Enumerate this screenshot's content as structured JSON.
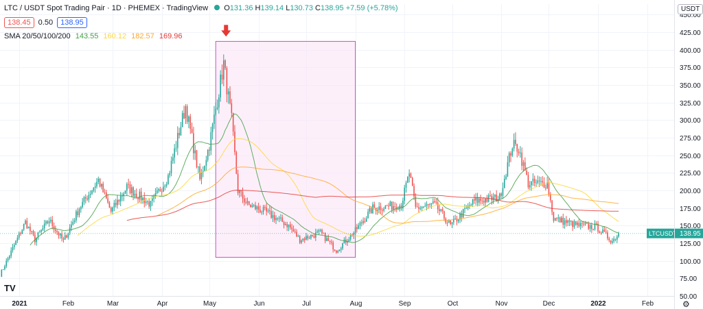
{
  "header": {
    "title": "LTC / USDT Spot Trading Pair · 1D · PHEMEX · TradingView",
    "ohlc": {
      "o_label": "O",
      "o": "131.36",
      "h_label": "H",
      "h": "139.14",
      "l_label": "L",
      "l": "130.73",
      "c_label": "C",
      "c": "138.95",
      "change": "+7.59 (+5.78%)"
    },
    "sell_price": "138.45",
    "spread": "0.50",
    "buy_price": "138.95",
    "sma_label": "SMA 20/50/100/200",
    "sma_values": [
      "143.55",
      "160.12",
      "182.57",
      "169.96"
    ]
  },
  "axis_currency": "USDT",
  "symbol_tag": "LTCUSDT",
  "last_price": "138.95",
  "colors": {
    "up": "#26a69a",
    "down": "#ef5350",
    "sma20": "#43a047",
    "sma50": "#fdd835",
    "sma100": "#ffa726",
    "sma200": "#e53935",
    "highlight_fill": "#fce4f6",
    "highlight_stroke": "#c154c1",
    "arrow": "#e53935"
  },
  "icons": {
    "gear": "gear-icon",
    "logo": "tradingview-logo-icon",
    "arrow": "arrow-down-icon"
  },
  "chart_data": {
    "type": "candlestick",
    "x_range": [
      "2020-12-20",
      "2022-02-18"
    ],
    "y_range": [
      50,
      465
    ],
    "y_ticks": [
      50,
      75,
      100,
      125,
      150,
      175,
      200,
      225,
      250,
      275,
      300,
      325,
      350,
      375,
      400,
      425,
      450
    ],
    "x_ticks": [
      {
        "date": "2021-01-01",
        "label": "2021",
        "bold": true
      },
      {
        "date": "2021-02-01",
        "label": "Feb"
      },
      {
        "date": "2021-03-01",
        "label": "Mar"
      },
      {
        "date": "2021-04-01",
        "label": "Apr"
      },
      {
        "date": "2021-05-01",
        "label": "May"
      },
      {
        "date": "2021-06-01",
        "label": "Jun"
      },
      {
        "date": "2021-07-01",
        "label": "Jul"
      },
      {
        "date": "2021-08-01",
        "label": "Aug"
      },
      {
        "date": "2021-09-01",
        "label": "Sep"
      },
      {
        "date": "2021-10-01",
        "label": "Oct"
      },
      {
        "date": "2021-11-01",
        "label": "Nov"
      },
      {
        "date": "2021-12-01",
        "label": "Dec"
      },
      {
        "date": "2022-01-01",
        "label": "2022",
        "bold": true
      },
      {
        "date": "2022-02-01",
        "label": "Feb"
      }
    ],
    "price_anchors": [
      [
        "2020-12-20",
        80
      ],
      [
        "2021-01-05",
        155
      ],
      [
        "2021-01-11",
        130
      ],
      [
        "2021-01-20",
        158
      ],
      [
        "2021-01-29",
        128
      ],
      [
        "2021-02-08",
        175
      ],
      [
        "2021-02-20",
        215
      ],
      [
        "2021-02-28",
        170
      ],
      [
        "2021-03-10",
        205
      ],
      [
        "2021-03-25",
        180
      ],
      [
        "2021-04-05",
        220
      ],
      [
        "2021-04-16",
        320
      ],
      [
        "2021-04-25",
        215
      ],
      [
        "2021-05-01",
        265
      ],
      [
        "2021-05-10",
        380
      ],
      [
        "2021-05-15",
        300
      ],
      [
        "2021-05-19",
        200
      ],
      [
        "2021-05-25",
        180
      ],
      [
        "2021-06-05",
        170
      ],
      [
        "2021-06-20",
        150
      ],
      [
        "2021-06-27",
        130
      ],
      [
        "2021-07-10",
        140
      ],
      [
        "2021-07-20",
        115
      ],
      [
        "2021-07-31",
        140
      ],
      [
        "2021-08-12",
        175
      ],
      [
        "2021-08-30",
        180
      ],
      [
        "2021-09-04",
        225
      ],
      [
        "2021-09-08",
        175
      ],
      [
        "2021-09-20",
        180
      ],
      [
        "2021-09-30",
        150
      ],
      [
        "2021-10-15",
        185
      ],
      [
        "2021-10-31",
        190
      ],
      [
        "2021-11-08",
        265
      ],
      [
        "2021-11-12",
        260
      ],
      [
        "2021-11-18",
        210
      ],
      [
        "2021-11-30",
        210
      ],
      [
        "2021-12-04",
        160
      ],
      [
        "2021-12-20",
        150
      ],
      [
        "2021-12-31",
        148
      ],
      [
        "2022-01-10",
        128
      ],
      [
        "2022-01-14",
        138.95
      ]
    ],
    "sma_last": {
      "sma20": 143.55,
      "sma50": 160.12,
      "sma100": 182.57,
      "sma200": 169.96
    },
    "highlight": {
      "x0": "2021-05-05",
      "x1": "2021-08-01",
      "y0": 105,
      "y1": 412
    },
    "last_price": 138.95
  }
}
